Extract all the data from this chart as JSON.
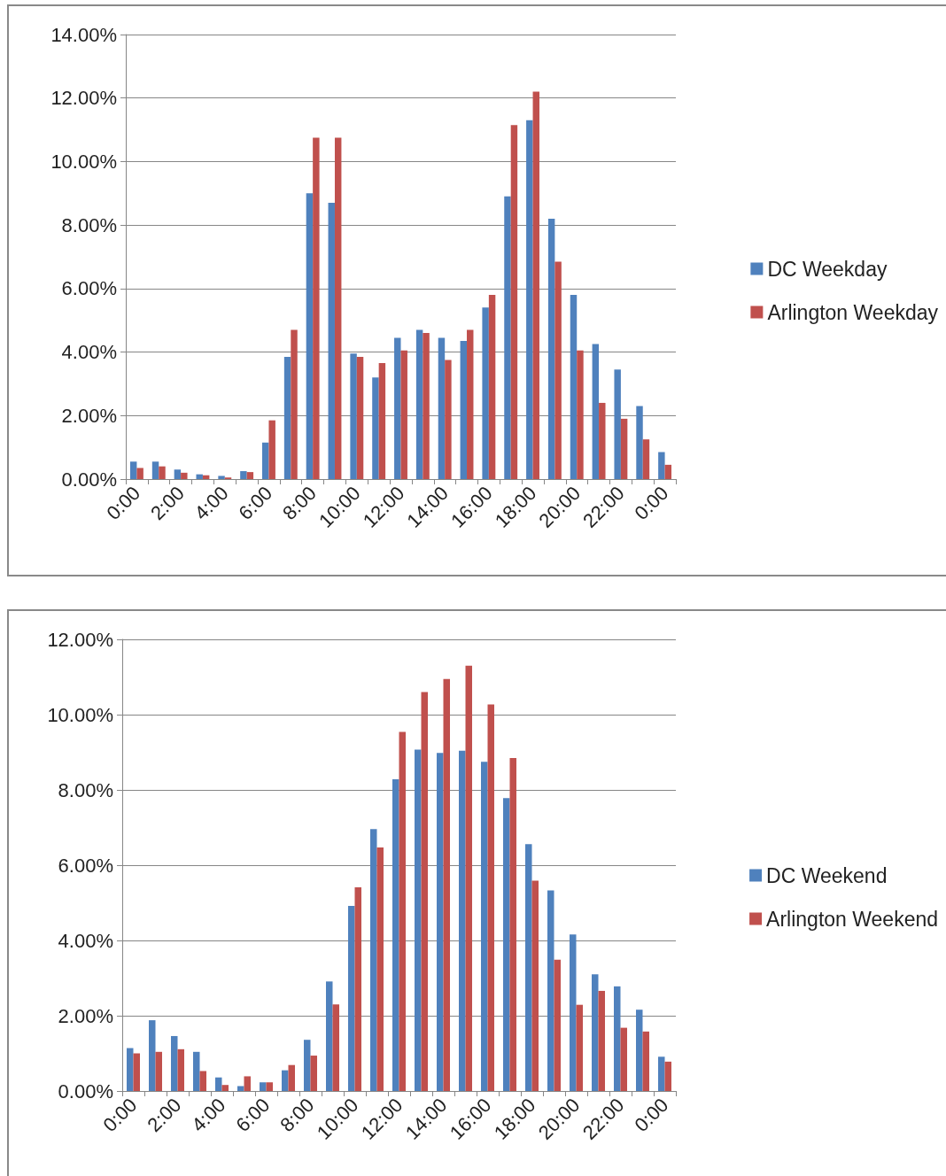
{
  "chart_data": [
    {
      "type": "bar",
      "categories": [
        "0:00",
        null,
        "2:00",
        null,
        "4:00",
        null,
        "6:00",
        null,
        "8:00",
        null,
        "10:00",
        null,
        "12:00",
        null,
        "14:00",
        null,
        "16:00",
        null,
        "18:00",
        null,
        "20:00",
        null,
        "22:00",
        null,
        "0:00"
      ],
      "series": [
        {
          "name": "DC Weekday",
          "color": "#4f81bd",
          "values": [
            0.55,
            0.55,
            0.3,
            0.15,
            0.1,
            0.25,
            1.15,
            3.85,
            9.0,
            8.7,
            3.95,
            3.2,
            4.45,
            4.7,
            4.45,
            4.35,
            5.4,
            8.9,
            11.3,
            8.2,
            5.8,
            4.25,
            3.45,
            2.3,
            0.85
          ]
        },
        {
          "name": "Arlington Weekday",
          "color": "#c0504d",
          "values": [
            0.35,
            0.4,
            0.2,
            0.12,
            0.05,
            0.22,
            1.85,
            4.7,
            10.75,
            10.75,
            3.85,
            3.65,
            4.05,
            4.6,
            3.75,
            4.7,
            5.8,
            11.15,
            12.2,
            6.85,
            4.05,
            2.4,
            1.9,
            1.25,
            0.45
          ]
        }
      ],
      "ylim": [
        0,
        14
      ],
      "yticks": [
        {
          "value": 0,
          "label": "0.00%"
        },
        {
          "value": 2,
          "label": "2.00%"
        },
        {
          "value": 4,
          "label": "4.00%"
        },
        {
          "value": 6,
          "label": "6.00%"
        },
        {
          "value": 8,
          "label": "8.00%"
        },
        {
          "value": 10,
          "label": "10.00%"
        },
        {
          "value": 12,
          "label": "12.00%"
        },
        {
          "value": 14,
          "label": "14.00%"
        }
      ],
      "grid": "y",
      "legend": "right"
    },
    {
      "type": "bar",
      "categories": [
        "0:00",
        null,
        "2:00",
        null,
        "4:00",
        null,
        "6:00",
        null,
        "8:00",
        null,
        "10:00",
        null,
        "12:00",
        null,
        "14:00",
        null,
        "16:00",
        null,
        "18:00",
        null,
        "20:00",
        null,
        "22:00",
        null,
        "0:00"
      ],
      "series": [
        {
          "name": "DC Weekend",
          "color": "#4f81bd",
          "values": [
            1.14,
            1.88,
            1.46,
            1.04,
            0.36,
            0.13,
            0.23,
            0.55,
            1.36,
            2.91,
            4.92,
            6.96,
            8.28,
            9.07,
            8.98,
            9.04,
            8.75,
            7.78,
            6.56,
            5.33,
            4.16,
            3.1,
            2.78,
            2.16,
            0.91
          ]
        },
        {
          "name": "Arlington Weekend",
          "color": "#c0504d",
          "values": [
            1.0,
            1.04,
            1.11,
            0.53,
            0.16,
            0.39,
            0.23,
            0.69,
            0.94,
            2.3,
            5.41,
            6.47,
            9.54,
            10.6,
            10.95,
            11.3,
            10.27,
            8.85,
            5.59,
            3.49,
            2.29,
            2.66,
            1.68,
            1.58,
            0.78
          ]
        }
      ],
      "ylim": [
        0,
        12
      ],
      "yticks": [
        {
          "value": 0,
          "label": "0.00%"
        },
        {
          "value": 2,
          "label": "2.00%"
        },
        {
          "value": 4,
          "label": "4.00%"
        },
        {
          "value": 6,
          "label": "6.00%"
        },
        {
          "value": 8,
          "label": "8.00%"
        },
        {
          "value": 10,
          "label": "10.00%"
        },
        {
          "value": 12,
          "label": "12.00%"
        }
      ],
      "grid": "y",
      "legend": "right"
    }
  ]
}
